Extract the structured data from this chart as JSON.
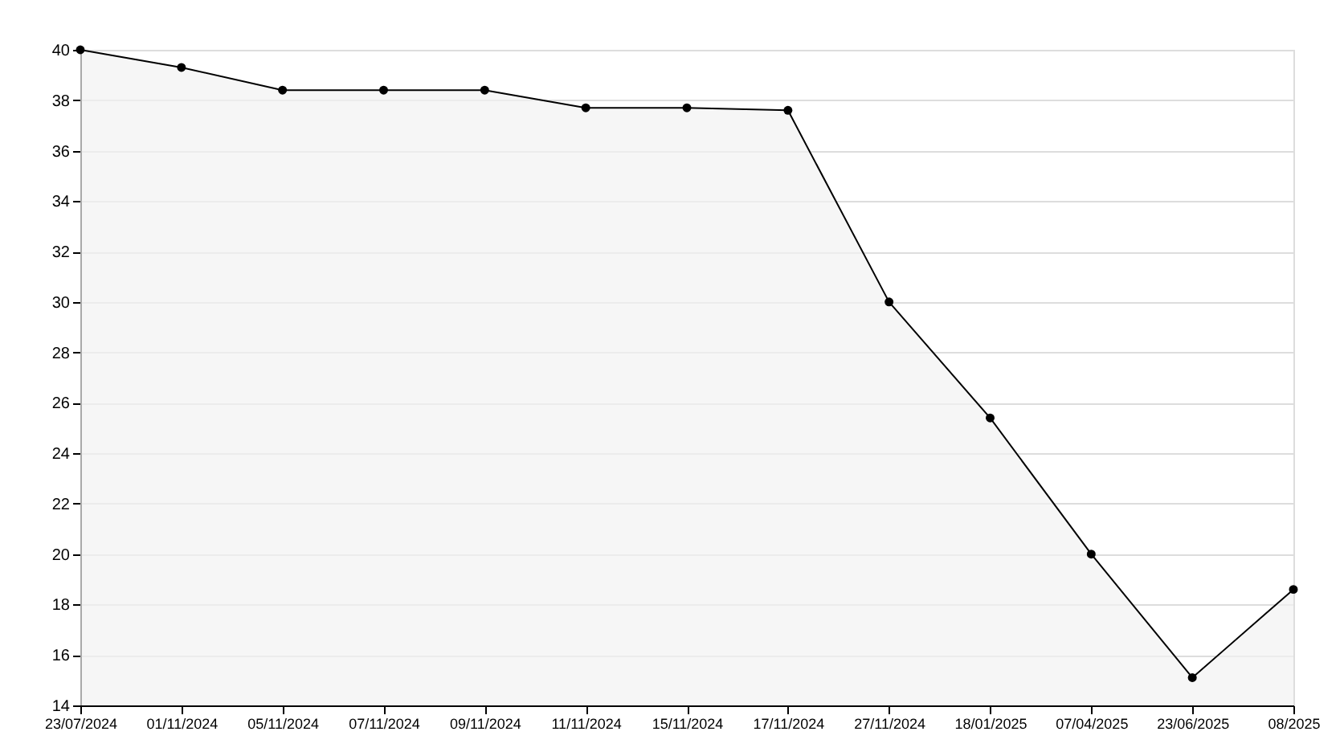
{
  "chart_data": {
    "type": "area",
    "categories": [
      "23/07/2024",
      "01/11/2024",
      "05/11/2024",
      "07/11/2024",
      "09/11/2024",
      "11/11/2024",
      "15/11/2024",
      "17/11/2024",
      "27/11/2024",
      "18/01/2025",
      "07/04/2025",
      "23/06/2025",
      "08/2025"
    ],
    "series": [
      {
        "color": "#000000",
        "values": [
          40,
          39.3,
          38.4,
          38.4,
          38.4,
          37.7,
          37.7,
          37.6,
          30.0,
          25.4,
          20.0,
          15.1,
          18.6
        ]
      }
    ],
    "ylim": [
      14,
      40
    ],
    "yticks": [
      14,
      16,
      18,
      20,
      22,
      24,
      26,
      28,
      30,
      32,
      34,
      36,
      38,
      40
    ],
    "grid": "y",
    "marker": "circle",
    "line_style": "solid"
  }
}
